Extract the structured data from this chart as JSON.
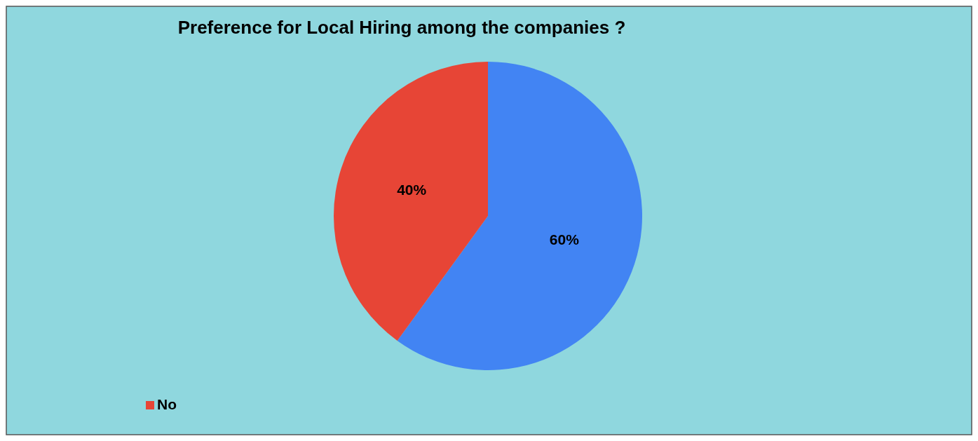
{
  "chart_data": {
    "type": "pie",
    "title": "Preference for Local Hiring among the companies ?",
    "categories": [
      null,
      "No"
    ],
    "values": [
      60,
      40
    ],
    "colors": [
      "#4284f3",
      "#e74536"
    ],
    "value_labels": [
      "60%",
      "40%"
    ],
    "legend": "bottom left"
  }
}
